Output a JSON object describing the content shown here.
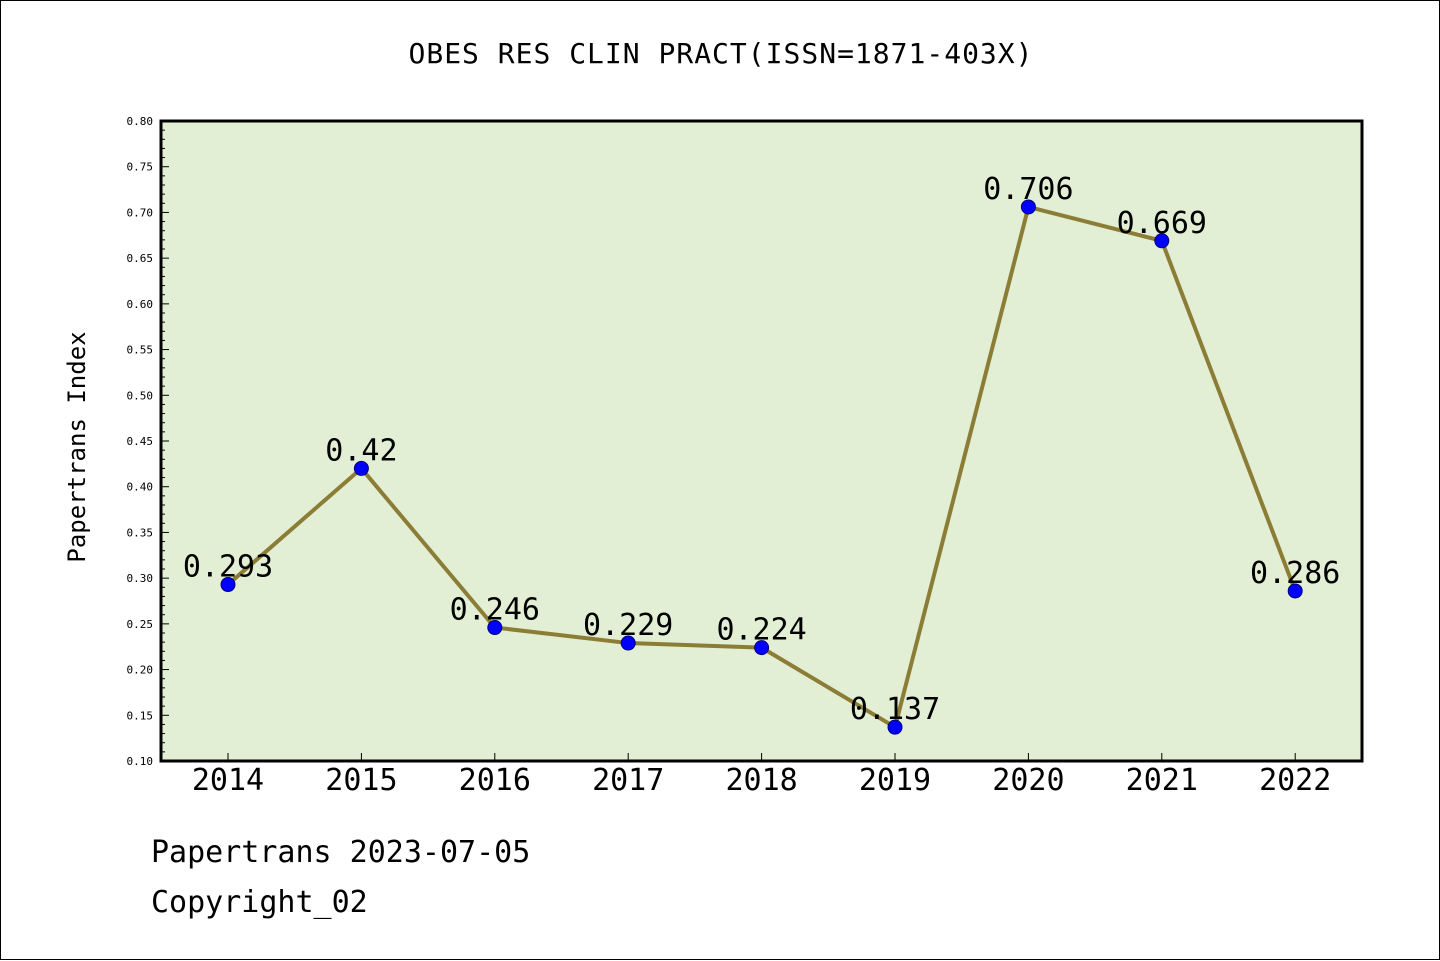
{
  "title": "OBES RES CLIN PRACT(ISSN=1871-403X)",
  "footer": {
    "line1": "Papertrans 2023-07-05",
    "line2": "Copyright_02"
  },
  "chart_data": {
    "type": "line",
    "title": "OBES RES CLIN PRACT(ISSN=1871-403X)",
    "xlabel": "",
    "ylabel": "Papertrans Index",
    "categories": [
      "2014",
      "2015",
      "2016",
      "2017",
      "2018",
      "2019",
      "2020",
      "2021",
      "2022"
    ],
    "values": [
      0.293,
      0.42,
      0.246,
      0.229,
      0.224,
      0.137,
      0.706,
      0.669,
      0.286
    ],
    "data_labels": [
      "0.293",
      "0.42",
      "0.246",
      "0.229",
      "0.224",
      "0.137",
      "0.706",
      "0.669",
      "0.286"
    ],
    "ylim": [
      0.1,
      0.8
    ],
    "yticks": [
      "0.10",
      "0.15",
      "0.20",
      "0.25",
      "0.30",
      "0.35",
      "0.40",
      "0.45",
      "0.50",
      "0.55",
      "0.60",
      "0.65",
      "0.70",
      "0.75",
      "0.80"
    ],
    "grid": false,
    "colors": {
      "plot_background": "#e2efd5",
      "line": "#8b7d35",
      "marker": "#0000ff",
      "frame": "#000000"
    }
  }
}
